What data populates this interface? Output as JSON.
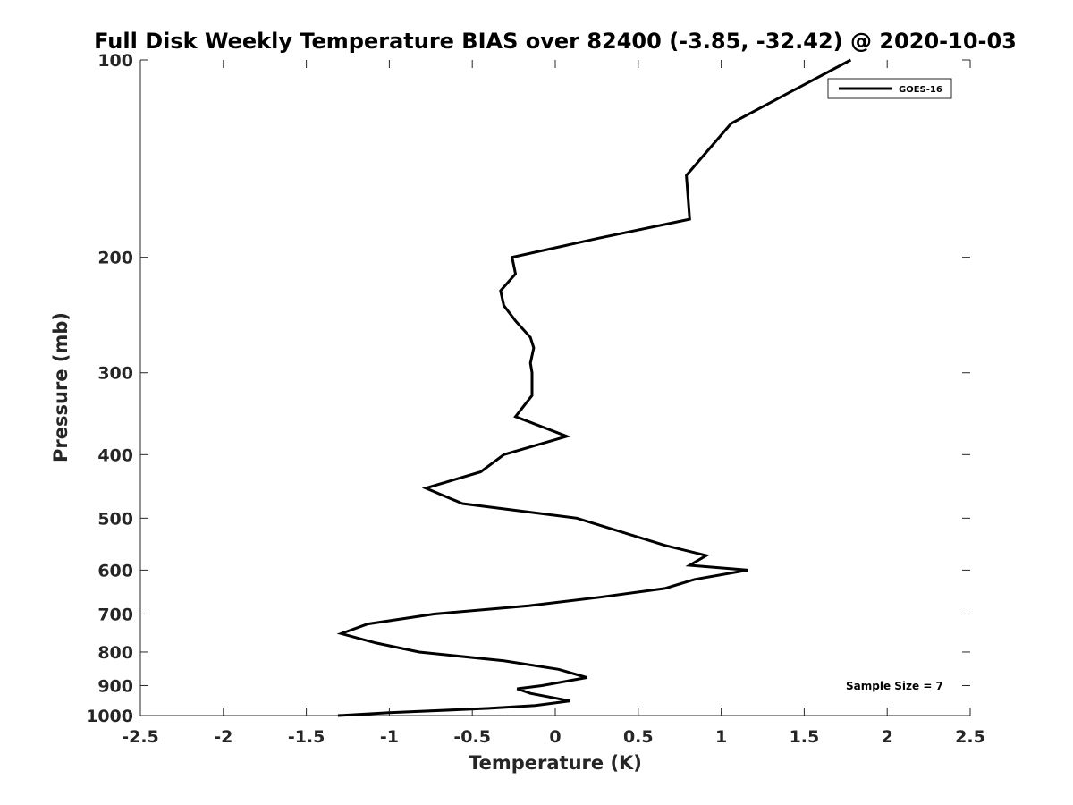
{
  "chart_data": {
    "type": "line",
    "title": "Full Disk Weekly Temperature BIAS over 82400 (-3.85, -32.42) @ 2020-10-03",
    "xlabel": "Temperature (K)",
    "ylabel": "Pressure (mb)",
    "xlim": [
      -2.5,
      2.5
    ],
    "ylim": [
      1000,
      100
    ],
    "yscale": "log",
    "reversed_y": true,
    "x_ticks": [
      -2.5,
      -2,
      -1.5,
      -1,
      -0.5,
      0,
      0.5,
      1,
      1.5,
      2,
      2.5
    ],
    "x_tick_labels": [
      "-2.5",
      "-2",
      "-1.5",
      "-1",
      "-0.5",
      "0",
      "0.5",
      "1",
      "1.5",
      "2",
      "2.5"
    ],
    "y_ticks": [
      100,
      200,
      300,
      400,
      500,
      600,
      700,
      800,
      900,
      1000
    ],
    "y_tick_labels": [
      "100",
      "200",
      "300",
      "400",
      "500",
      "600",
      "700",
      "800",
      "900",
      "1000"
    ],
    "grid": false,
    "legend": {
      "placement": "top-right",
      "entries": [
        "GOES-16"
      ]
    },
    "annotation": "Sample Size = 7",
    "series": [
      {
        "name": "GOES-16",
        "color": "#000000",
        "points": [
          {
            "t": 1.78,
            "p": 100
          },
          {
            "t": 1.06,
            "p": 125
          },
          {
            "t": 0.79,
            "p": 150
          },
          {
            "t": 0.81,
            "p": 175
          },
          {
            "t": 0.26,
            "p": 187
          },
          {
            "t": -0.26,
            "p": 200
          },
          {
            "t": -0.24,
            "p": 212
          },
          {
            "t": -0.33,
            "p": 225
          },
          {
            "t": -0.31,
            "p": 237
          },
          {
            "t": -0.24,
            "p": 250
          },
          {
            "t": -0.15,
            "p": 265
          },
          {
            "t": -0.13,
            "p": 275
          },
          {
            "t": -0.15,
            "p": 290
          },
          {
            "t": -0.14,
            "p": 300
          },
          {
            "t": -0.14,
            "p": 325
          },
          {
            "t": -0.24,
            "p": 350
          },
          {
            "t": 0.07,
            "p": 375
          },
          {
            "t": -0.31,
            "p": 400
          },
          {
            "t": -0.45,
            "p": 425
          },
          {
            "t": -0.78,
            "p": 450
          },
          {
            "t": -0.56,
            "p": 475
          },
          {
            "t": 0.13,
            "p": 500
          },
          {
            "t": 0.66,
            "p": 550
          },
          {
            "t": 0.91,
            "p": 570
          },
          {
            "t": 0.81,
            "p": 590
          },
          {
            "t": 1.16,
            "p": 600
          },
          {
            "t": 0.84,
            "p": 620
          },
          {
            "t": 0.66,
            "p": 640
          },
          {
            "t": 0.27,
            "p": 660
          },
          {
            "t": -0.16,
            "p": 680
          },
          {
            "t": -0.73,
            "p": 700
          },
          {
            "t": -1.13,
            "p": 725
          },
          {
            "t": -1.29,
            "p": 750
          },
          {
            "t": -1.08,
            "p": 775
          },
          {
            "t": -0.82,
            "p": 800
          },
          {
            "t": -0.31,
            "p": 825
          },
          {
            "t": 0.02,
            "p": 850
          },
          {
            "t": 0.19,
            "p": 875
          },
          {
            "t": -0.08,
            "p": 900
          },
          {
            "t": -0.23,
            "p": 910
          },
          {
            "t": -0.15,
            "p": 925
          },
          {
            "t": 0.09,
            "p": 950
          },
          {
            "t": -0.12,
            "p": 965
          },
          {
            "t": -0.4,
            "p": 975
          },
          {
            "t": -1.0,
            "p": 990
          },
          {
            "t": -1.31,
            "p": 1000
          }
        ]
      }
    ]
  }
}
